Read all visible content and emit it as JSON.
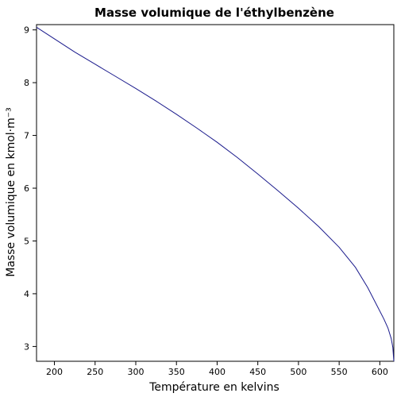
{
  "chart_data": {
    "type": "line",
    "title": "Masse volumique de l'éthylbenzène",
    "xlabel": "Température en kelvins",
    "ylabel": "Masse volumique en kmol·m⁻³",
    "xlim": [
      178,
      617.2
    ],
    "ylim": [
      2.72,
      9.1
    ],
    "xticks": [
      200,
      250,
      300,
      350,
      400,
      450,
      500,
      550,
      600
    ],
    "yticks": [
      3,
      4,
      5,
      6,
      7,
      8,
      9
    ],
    "grid": false,
    "colors": {
      "line": "#1a1a8c",
      "frame": "#000000"
    },
    "series": [
      {
        "x": [
          178,
          200,
          225,
          250,
          275,
          300,
          325,
          350,
          375,
          400,
          425,
          450,
          475,
          500,
          525,
          550,
          570,
          585,
          595,
          605,
          610,
          614,
          616,
          617.2
        ],
        "y": [
          9.05,
          8.83,
          8.58,
          8.35,
          8.12,
          7.89,
          7.65,
          7.4,
          7.14,
          6.87,
          6.58,
          6.27,
          5.95,
          5.62,
          5.27,
          4.88,
          4.5,
          4.12,
          3.82,
          3.52,
          3.35,
          3.15,
          2.98,
          2.72
        ]
      }
    ]
  }
}
